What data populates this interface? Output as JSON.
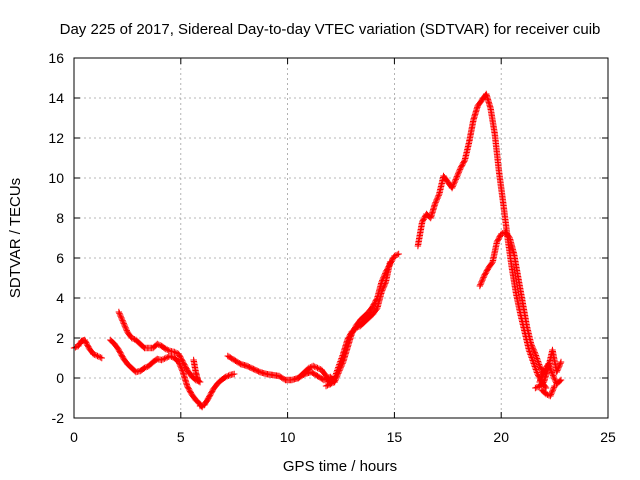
{
  "chart_data": {
    "type": "scatter",
    "title": "Day 225 of 2017, Sidereal Day-to-day VTEC variation (SDTVAR) for receiver cuib",
    "xlabel": "GPS time / hours",
    "ylabel": "SDTVAR / TECUs",
    "xlim": [
      0,
      25
    ],
    "ylim": [
      -2,
      16
    ],
    "x_ticks": [
      0,
      5,
      10,
      15,
      20,
      25
    ],
    "y_ticks": [
      -2,
      0,
      2,
      4,
      6,
      8,
      10,
      12,
      14,
      16
    ],
    "grid": true,
    "marker": "+",
    "colors": {
      "series": "#ff0000",
      "grid": "#a0a0a0",
      "axes": "#000000"
    },
    "series": [
      {
        "x": [
          0.0,
          0.2,
          0.35,
          0.5,
          0.7,
          0.9,
          1.1,
          1.3
        ],
        "y": [
          1.5,
          1.6,
          1.85,
          1.9,
          1.5,
          1.2,
          1.1,
          1.0
        ]
      },
      {
        "x": [
          1.7,
          1.9,
          2.1,
          2.3,
          2.5,
          2.7,
          2.9,
          3.1,
          3.3,
          3.5,
          3.7,
          3.9,
          4.1,
          4.3,
          4.5,
          4.7,
          4.9,
          5.1,
          5.3,
          5.5,
          5.7,
          5.9,
          6.0
        ],
        "y": [
          1.9,
          1.7,
          1.4,
          1.0,
          0.7,
          0.5,
          0.3,
          0.35,
          0.5,
          0.6,
          0.8,
          0.95,
          0.9,
          1.0,
          1.1,
          1.0,
          0.8,
          0.3,
          -0.4,
          -0.8,
          -1.1,
          -1.3,
          -1.45
        ]
      },
      {
        "x": [
          2.1,
          2.3,
          2.5,
          2.7,
          2.9,
          3.1,
          3.3,
          3.5,
          3.7,
          3.9,
          4.1,
          4.3,
          4.5,
          4.7,
          4.9,
          5.1,
          5.3,
          5.5,
          5.7,
          5.9
        ],
        "y": [
          3.3,
          2.8,
          2.3,
          2.0,
          1.9,
          1.7,
          1.5,
          1.5,
          1.5,
          1.7,
          1.6,
          1.45,
          1.35,
          1.3,
          1.2,
          0.8,
          0.4,
          0.1,
          -0.1,
          -0.2
        ]
      },
      {
        "x": [
          5.9,
          6.1,
          6.3,
          6.5,
          6.7,
          6.9,
          7.1,
          7.3,
          7.5
        ],
        "y": [
          -1.4,
          -1.35,
          -1.0,
          -0.6,
          -0.3,
          -0.1,
          0.05,
          0.15,
          0.2
        ]
      },
      {
        "x": [
          7.2,
          7.5,
          7.8,
          8.1,
          8.4,
          8.7,
          9.0,
          9.3,
          9.6,
          9.9,
          10.2,
          10.5,
          10.8,
          11.1,
          11.4,
          11.7,
          12.0,
          12.2
        ],
        "y": [
          1.1,
          0.9,
          0.7,
          0.6,
          0.45,
          0.3,
          0.2,
          0.15,
          0.1,
          -0.1,
          -0.1,
          0.0,
          0.2,
          0.3,
          0.1,
          -0.1,
          0.05,
          -0.2
        ]
      },
      {
        "x": [
          10.5,
          10.8,
          11.0,
          11.2,
          11.4,
          11.6,
          11.8,
          12.0,
          12.2,
          12.4,
          12.6,
          12.8,
          13.0,
          13.2,
          13.4,
          13.6,
          13.8,
          14.0,
          14.2,
          14.4,
          14.6,
          14.8,
          15.0,
          15.2
        ],
        "y": [
          0.0,
          0.3,
          0.5,
          0.6,
          0.5,
          0.4,
          0.1,
          -0.3,
          -0.2,
          0.3,
          0.8,
          1.5,
          2.2,
          2.6,
          2.9,
          3.1,
          3.3,
          3.6,
          4.0,
          4.8,
          5.3,
          5.7,
          6.1,
          6.2
        ]
      },
      {
        "x": [
          11.8,
          12.0,
          12.2,
          12.4,
          12.6,
          12.8,
          13.0,
          13.2,
          13.4,
          13.6,
          13.8,
          14.0,
          14.2,
          14.4,
          14.6,
          14.8
        ],
        "y": [
          -0.4,
          -0.3,
          0.0,
          0.6,
          1.2,
          1.9,
          2.3,
          2.5,
          2.6,
          2.8,
          3.0,
          3.2,
          3.5,
          4.3,
          4.8,
          5.8
        ]
      },
      {
        "x": [
          16.1,
          16.3,
          16.5,
          16.7,
          16.9,
          17.1,
          17.3,
          17.5,
          17.7,
          17.9,
          18.1,
          18.3,
          18.5,
          18.7,
          18.9,
          19.1,
          19.3,
          19.5,
          19.7,
          19.9,
          20.1,
          20.3,
          20.5,
          20.7,
          20.9,
          21.1,
          21.3,
          21.5,
          21.7,
          21.9,
          22.1
        ],
        "y": [
          6.6,
          7.8,
          8.2,
          8.0,
          8.7,
          9.2,
          10.1,
          9.8,
          9.5,
          10.0,
          10.5,
          10.9,
          11.8,
          12.9,
          13.6,
          13.9,
          14.2,
          13.5,
          12.2,
          10.3,
          8.7,
          7.0,
          5.5,
          4.2,
          3.2,
          2.3,
          1.4,
          0.8,
          0.2,
          -0.2,
          -0.5
        ]
      },
      {
        "x": [
          19.0,
          19.2,
          19.4,
          19.6,
          19.8,
          20.0,
          20.2,
          20.4,
          20.6,
          20.8,
          21.0,
          21.2,
          21.4,
          21.6,
          21.8,
          22.0
        ],
        "y": [
          4.6,
          5.1,
          5.5,
          5.8,
          6.8,
          7.2,
          7.3,
          7.0,
          6.2,
          5.0,
          3.8,
          2.6,
          1.7,
          1.2,
          0.6,
          0.2
        ]
      },
      {
        "x": [
          21.8,
          22.0,
          22.2,
          22.4,
          22.6,
          22.8
        ],
        "y": [
          -0.2,
          0.3,
          0.7,
          0.2,
          -0.3,
          -0.1
        ]
      },
      {
        "x": [
          21.6,
          21.8,
          22.0,
          22.2,
          22.4,
          22.6,
          22.8
        ],
        "y": [
          -0.5,
          -0.4,
          -0.2,
          0.5,
          1.4,
          0.3,
          0.8
        ]
      },
      {
        "x": [
          21.9,
          22.1,
          22.3,
          22.5
        ],
        "y": [
          -0.6,
          -0.8,
          -0.9,
          -0.4
        ]
      },
      {
        "x": [
          5.6,
          5.7,
          5.8,
          5.9
        ],
        "y": [
          0.9,
          0.3,
          -0.1,
          -0.2
        ]
      }
    ]
  }
}
